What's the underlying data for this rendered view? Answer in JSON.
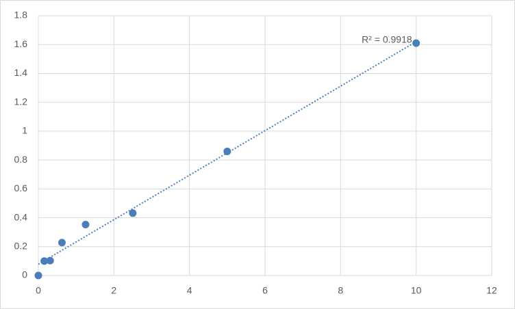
{
  "chart_data": {
    "type": "scatter",
    "x": [
      0,
      0.156,
      0.312,
      0.625,
      1.25,
      2.5,
      5,
      10
    ],
    "series": [
      {
        "color": "#4a7ebb",
        "values": [
          0,
          0.1,
          0.103,
          0.228,
          0.353,
          0.432,
          0.86,
          1.61
        ]
      }
    ],
    "trendline": "linear",
    "annotation": "R² = 0.9918",
    "xlim": [
      0,
      12
    ],
    "xticks": [
      0,
      2,
      4,
      6,
      8,
      10,
      12
    ],
    "ylim": [
      0,
      1.8
    ],
    "yticks": [
      0,
      0.2,
      0.4,
      0.6,
      0.8,
      1,
      1.2,
      1.4,
      1.6,
      1.8
    ],
    "grid": true
  }
}
